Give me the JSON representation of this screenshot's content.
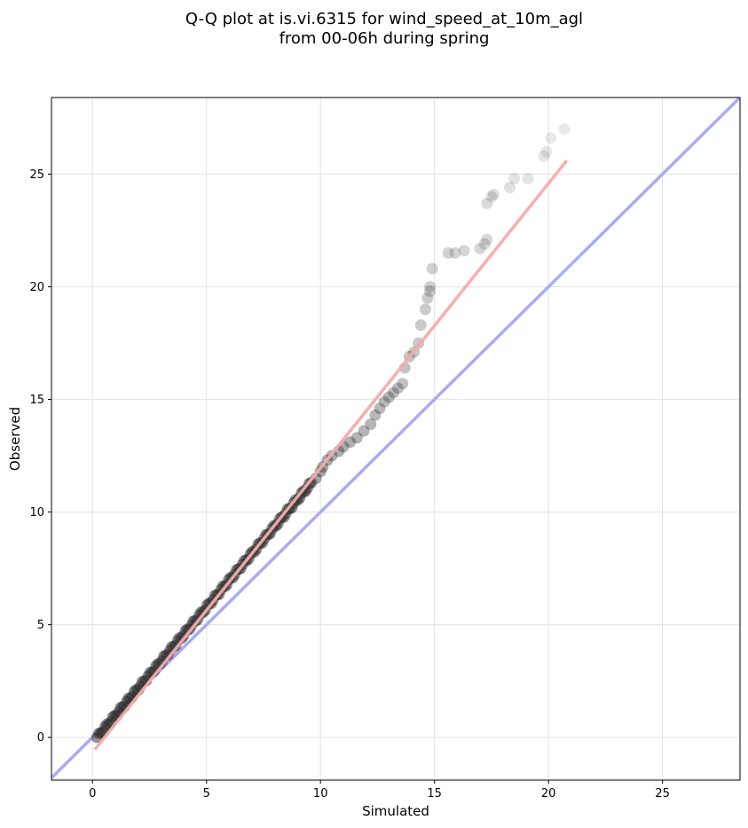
{
  "chart_data": {
    "type": "scatter",
    "title_line1": "Q-Q plot at is.vi.6315 for wind_speed_at_10m_agl",
    "title_line2": "from 00-06h during spring",
    "xlabel": "Simulated",
    "ylabel": "Observed",
    "xlim": [
      -1.8,
      28.4
    ],
    "ylim": [
      -1.9,
      28.4
    ],
    "xticks": [
      0,
      5,
      10,
      15,
      20,
      25
    ],
    "yticks": [
      0,
      5,
      10,
      15,
      20,
      25
    ],
    "grid": true,
    "identity_line": {
      "color": "#aaaaf5",
      "from": [
        -1.8,
        -1.8
      ],
      "to": [
        28.4,
        28.4
      ]
    },
    "fit_line": {
      "color": "#f5aaaa",
      "from": [
        0.1,
        -0.55
      ],
      "to": [
        20.8,
        25.6
      ]
    },
    "point_color": "#2b2b2b",
    "dense_segment": {
      "from": [
        0.2,
        0.0
      ],
      "to": [
        9.6,
        11.3
      ],
      "count": 110
    },
    "points": [
      [
        9.8,
        11.5
      ],
      [
        10.0,
        11.8
      ],
      [
        10.1,
        12.0
      ],
      [
        10.3,
        12.3
      ],
      [
        10.5,
        12.5
      ],
      [
        10.8,
        12.7
      ],
      [
        11.0,
        12.9
      ],
      [
        11.3,
        13.1
      ],
      [
        11.6,
        13.3
      ],
      [
        11.9,
        13.6
      ],
      [
        12.2,
        13.9
      ],
      [
        12.4,
        14.3
      ],
      [
        12.6,
        14.6
      ],
      [
        12.8,
        14.9
      ],
      [
        13.0,
        15.1
      ],
      [
        13.2,
        15.3
      ],
      [
        13.4,
        15.5
      ],
      [
        13.6,
        15.7
      ],
      [
        13.7,
        16.4
      ],
      [
        13.9,
        16.9
      ],
      [
        14.1,
        17.1
      ],
      [
        14.3,
        17.5
      ],
      [
        14.4,
        18.3
      ],
      [
        14.6,
        19.0
      ],
      [
        14.7,
        19.5
      ],
      [
        14.8,
        19.8
      ],
      [
        14.8,
        20.0
      ],
      [
        14.9,
        20.8
      ],
      [
        15.6,
        21.5
      ],
      [
        15.9,
        21.5
      ],
      [
        16.3,
        21.6
      ],
      [
        17.0,
        21.7
      ],
      [
        17.2,
        21.9
      ],
      [
        17.3,
        22.1
      ],
      [
        17.3,
        23.7
      ],
      [
        17.5,
        24.0
      ],
      [
        17.6,
        24.1
      ],
      [
        18.3,
        24.4
      ],
      [
        18.5,
        24.8
      ],
      [
        19.1,
        24.8
      ],
      [
        19.8,
        25.8
      ],
      [
        19.9,
        26.0
      ],
      [
        20.1,
        26.6
      ],
      [
        20.7,
        27.0
      ]
    ]
  }
}
